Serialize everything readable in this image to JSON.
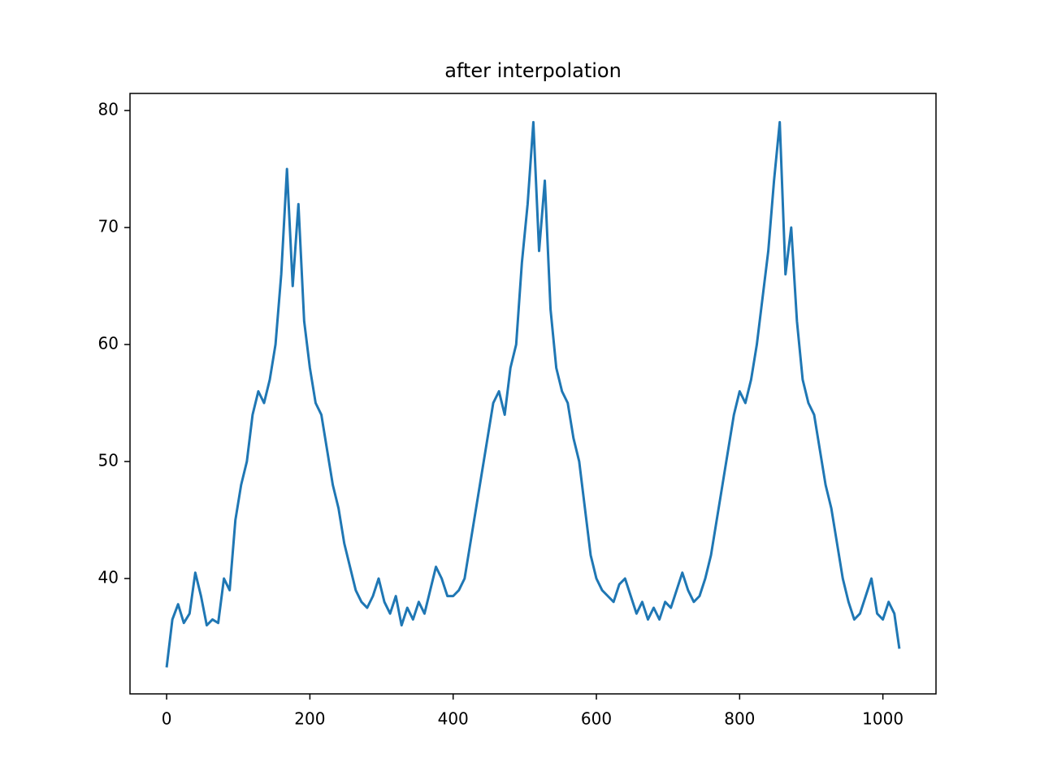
{
  "chart_data": {
    "type": "line",
    "title": "after interpolation",
    "x": [
      0,
      8,
      16,
      24,
      32,
      40,
      48,
      56,
      64,
      72,
      80,
      88,
      96,
      104,
      112,
      120,
      128,
      136,
      144,
      152,
      160,
      168,
      176,
      184,
      192,
      200,
      208,
      216,
      224,
      232,
      240,
      248,
      256,
      264,
      272,
      280,
      288,
      296,
      304,
      312,
      320,
      328,
      336,
      344,
      352,
      360,
      368,
      376,
      384,
      392,
      400,
      408,
      416,
      424,
      432,
      440,
      448,
      456,
      464,
      472,
      480,
      488,
      496,
      504,
      512,
      520,
      528,
      536,
      544,
      552,
      560,
      568,
      576,
      584,
      592,
      600,
      608,
      616,
      624,
      632,
      640,
      648,
      656,
      664,
      672,
      680,
      688,
      696,
      704,
      712,
      720,
      728,
      736,
      744,
      752,
      760,
      768,
      776,
      784,
      792,
      800,
      808,
      816,
      824,
      832,
      840,
      848,
      856,
      864,
      872,
      880,
      888,
      896,
      904,
      912,
      920,
      928,
      936,
      944,
      952,
      960,
      968,
      976,
      984,
      992,
      1000,
      1008,
      1016,
      1023
    ],
    "series": [
      {
        "name": "line",
        "color": "#1f77b4",
        "values": [
          32.4,
          36.5,
          37.8,
          36.2,
          37,
          40.5,
          38.5,
          36,
          36.5,
          36.2,
          40,
          39,
          45,
          48,
          50,
          54,
          56,
          55,
          57,
          60,
          66,
          75,
          65,
          72,
          62,
          58,
          55,
          54,
          51,
          48,
          46,
          43,
          41,
          39,
          38,
          37.5,
          38.5,
          40,
          38,
          37,
          38.5,
          36,
          37.5,
          36.5,
          38,
          37,
          39,
          41,
          40,
          38.5,
          38.5,
          39,
          40,
          43,
          46,
          49,
          52,
          55,
          56,
          54,
          58,
          60,
          67,
          72,
          79,
          68,
          74,
          63,
          58,
          56,
          55,
          52,
          50,
          46,
          42,
          40,
          39,
          38.5,
          38,
          39.5,
          40,
          38.5,
          37,
          38,
          36.5,
          37.5,
          36.5,
          38,
          37.5,
          39,
          40.5,
          39,
          38,
          38.5,
          40,
          42,
          45,
          48,
          51,
          54,
          56,
          55,
          57,
          60,
          64,
          68,
          74,
          79,
          66,
          70,
          62,
          57,
          55,
          54,
          51,
          48,
          46,
          43,
          40,
          38,
          36.5,
          37,
          38.5,
          40,
          37,
          36.5,
          38,
          37,
          34
        ]
      }
    ],
    "xlim": [
      -51.15,
      1074.15
    ],
    "ylim": [
      30.14,
      81.46
    ],
    "xticks": [
      0,
      200,
      400,
      600,
      800,
      1000
    ],
    "yticks": [
      40,
      50,
      60,
      70,
      80
    ]
  }
}
